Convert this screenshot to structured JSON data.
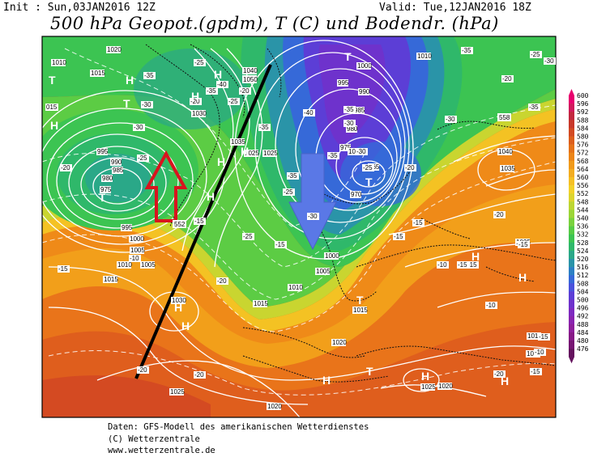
{
  "header": {
    "init": "Init : Sun,03JAN2016 12Z",
    "valid": "Valid: Tue,12JAN2016 18Z",
    "title": "500 hPa Geopot.(gpdm), T (C) und Bodendr. (hPa)"
  },
  "credits": {
    "line1": "Daten: GFS-Modell des amerikanischen Wetterdienstes",
    "line2": "(C) Wetterzentrale",
    "line3": "www.wetterzentrale.de"
  },
  "colorbar": {
    "labels": [
      "600",
      "596",
      "592",
      "588",
      "584",
      "580",
      "576",
      "572",
      "568",
      "564",
      "560",
      "556",
      "552",
      "548",
      "544",
      "540",
      "536",
      "532",
      "528",
      "524",
      "520",
      "516",
      "512",
      "508",
      "504",
      "500",
      "496",
      "492",
      "488",
      "484",
      "480",
      "476"
    ],
    "colors": [
      "#e8006e",
      "#d11a5c",
      "#c2283f",
      "#c8382a",
      "#d24a22",
      "#dc5e1c",
      "#e57219",
      "#ec8518",
      "#f09a1b",
      "#f3ad20",
      "#f5c024",
      "#f2d12a",
      "#dcd42e",
      "#bdd632",
      "#9bd637",
      "#79d23d",
      "#57cc45",
      "#3cc452",
      "#2fb86a",
      "#2aa888",
      "#2a94a8",
      "#2c80c4",
      "#3669d8",
      "#4a52dc",
      "#5c3ed6",
      "#6e32cc",
      "#7e2ac0",
      "#8a24b0",
      "#8e1f9c",
      "#861a86",
      "#761672",
      "#64125e"
    ]
  },
  "map": {
    "pressure_labels": [
      "1020",
      "1010",
      "1015",
      "015",
      "995",
      "990",
      "985",
      "980",
      "975",
      "995",
      "1000",
      "1005",
      "1010",
      "1015",
      "1005",
      "1040",
      "1040",
      "1030",
      "1035",
      "1025",
      "1025",
      "1000",
      "995",
      "990",
      "985",
      "980",
      "975",
      "970",
      "965",
      "1000",
      "1005",
      "1010",
      "1015",
      "1010",
      "1040",
      "1035",
      "1025",
      "1015",
      "1030",
      "1020",
      "1025",
      "1020",
      "1025",
      "1015",
      "1030",
      "1050",
      "1020",
      "1020"
    ],
    "temp_labels": [
      "-35",
      "-30",
      "-25",
      "-20",
      "-35",
      "-40",
      "-25",
      "-20",
      "-30",
      "-25",
      "-15",
      "-20",
      "-15",
      "-10",
      "-15",
      "-35",
      "-40",
      "-35",
      "-30",
      "-25",
      "-25",
      "-35",
      "-30",
      "-25",
      "-20",
      "-15",
      "-15",
      "-10",
      "-15",
      "-20",
      "-30",
      "-35",
      "-25",
      "-20",
      "-35",
      "-30",
      "-20",
      "-15",
      "-10",
      "-15",
      "-20",
      "-20",
      "-15",
      "-10",
      "-15",
      "-20",
      "-35",
      "-30"
    ],
    "highs": [
      "H",
      "H",
      "H",
      "H",
      "H",
      "H",
      "H",
      "H",
      "H",
      "H",
      "H",
      "H",
      "H",
      "H"
    ],
    "lows": [
      "T",
      "T",
      "T",
      "T",
      "T",
      "T",
      "T"
    ],
    "annotation_value": "552",
    "annotation_value2": "558"
  }
}
